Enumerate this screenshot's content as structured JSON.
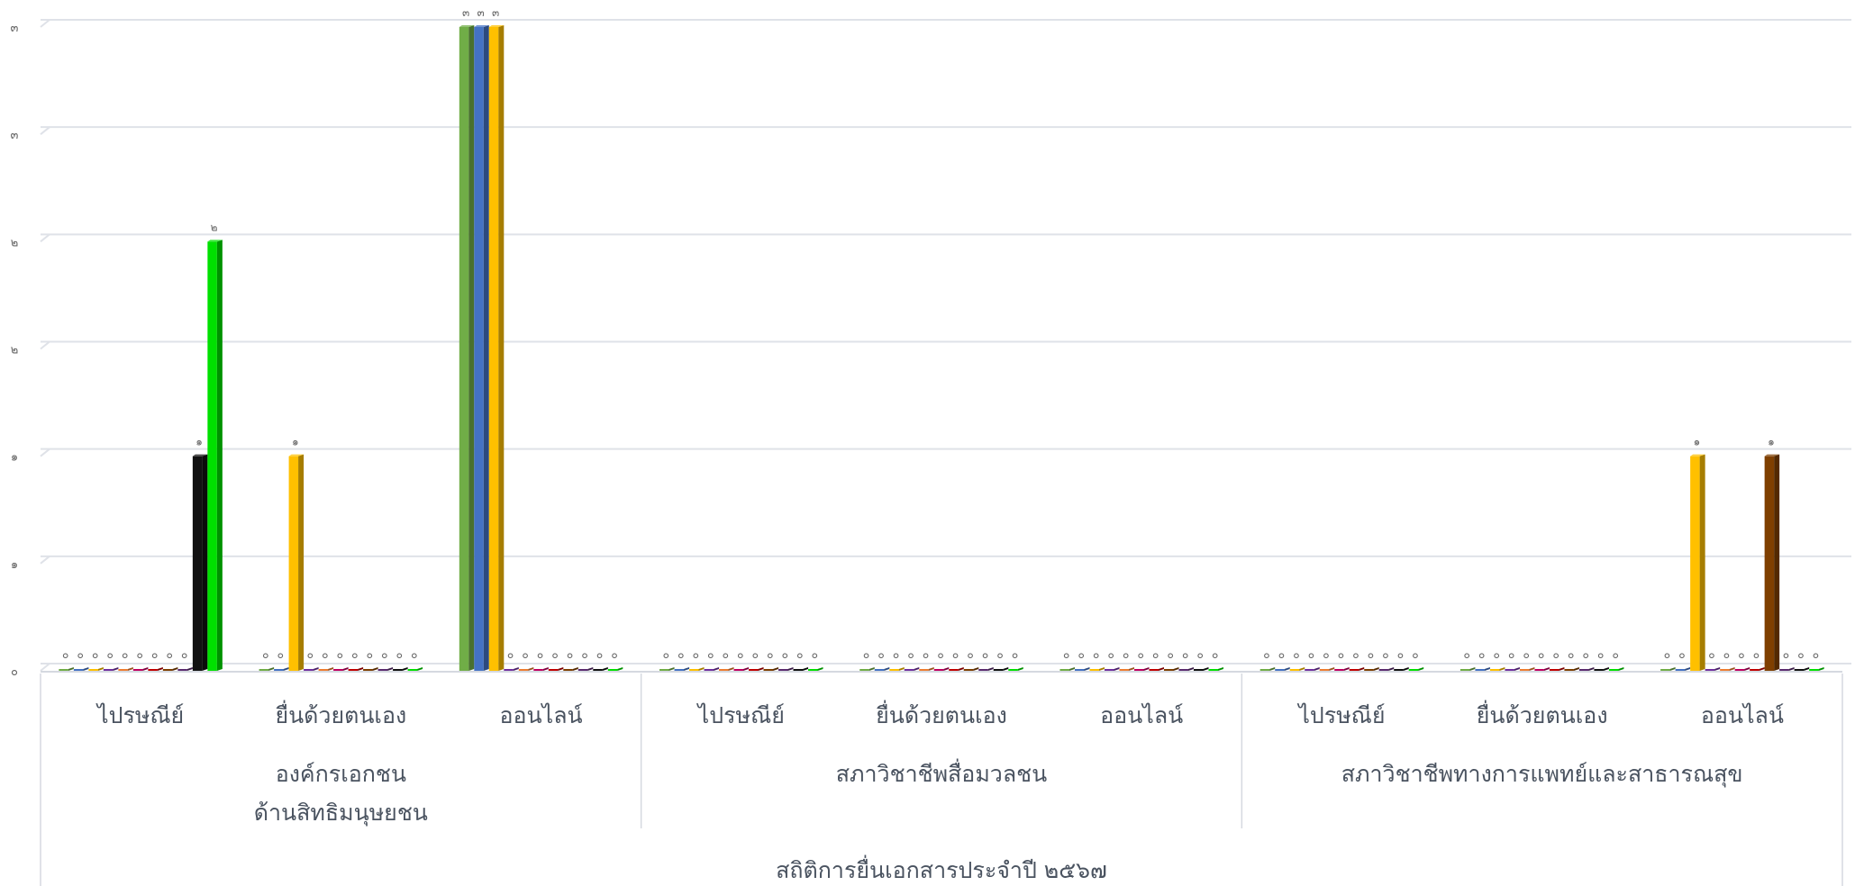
{
  "chart_data": {
    "type": "bar",
    "title": "",
    "xlabel": "สถิติการยื่นเอกสารประจำปี ๒๕๖๗",
    "ylabel": "",
    "ylim": [
      0,
      3
    ],
    "grid": true,
    "legend": "none",
    "y_tick_labels": [
      "๐",
      "๑",
      "๑",
      "๒",
      "๒",
      "๓",
      "๓"
    ],
    "groups": [
      {
        "name": [
          "องค์กรเอกชน",
          "ด้านสิทธิมนุษยชน"
        ],
        "categories": [
          "ไปรษณีย์",
          "ยื่นด้วยตนเอง",
          "ออนไลน์"
        ]
      },
      {
        "name": [
          "สภาวิชาชีพสื่อมวลชน"
        ],
        "categories": [
          "ไปรษณีย์",
          "ยื่นด้วยตนเอง",
          "ออนไลน์"
        ]
      },
      {
        "name": [
          "สภาวิชาชีพทางการแพทย์และสาธารณสุข"
        ],
        "categories": [
          "ไปรษณีย์",
          "ยื่นด้วยตนเอง",
          "ออนไลน์"
        ]
      }
    ],
    "series_colors": [
      "#70ad47",
      "#4472c4",
      "#ffc000",
      "#7030a0",
      "#ed7d31",
      "#c00060",
      "#c00000",
      "#7f3f00",
      "#5b2c6f",
      "#111111",
      "#00e000"
    ],
    "values": [
      [
        0,
        0,
        0,
        0,
        0,
        0,
        0,
        0,
        0,
        1,
        2
      ],
      [
        0,
        0,
        1,
        0,
        0,
        0,
        0,
        0,
        0,
        0,
        0
      ],
      [
        3,
        3,
        3,
        0,
        0,
        0,
        0,
        0,
        0,
        0,
        0
      ],
      [
        0,
        0,
        0,
        0,
        0,
        0,
        0,
        0,
        0,
        0,
        0
      ],
      [
        0,
        0,
        0,
        0,
        0,
        0,
        0,
        0,
        0,
        0,
        0
      ],
      [
        0,
        0,
        0,
        0,
        0,
        0,
        0,
        0,
        0,
        0,
        0
      ],
      [
        0,
        0,
        0,
        0,
        0,
        0,
        0,
        0,
        0,
        0,
        0
      ],
      [
        0,
        0,
        0,
        0,
        0,
        0,
        0,
        0,
        0,
        0,
        0
      ],
      [
        0,
        0,
        1,
        0,
        0,
        0,
        0,
        1,
        0,
        0,
        0
      ]
    ],
    "value_labels": [
      [
        "๐",
        "๐",
        "๐",
        "๐",
        "๐",
        "๐",
        "๐",
        "๐",
        "๐",
        "๑",
        "๒"
      ],
      [
        "๐",
        "๐",
        "๑",
        "๐",
        "๐",
        "๐",
        "๐",
        "๐",
        "๐",
        "๐",
        "๐"
      ],
      [
        "๓",
        "๓",
        "๓",
        "๐",
        "๐",
        "๐",
        "๐",
        "๐",
        "๐",
        "๐",
        "๐"
      ],
      [
        "๐",
        "๐",
        "๐",
        "๐",
        "๐",
        "๐",
        "๐",
        "๐",
        "๐",
        "๐",
        "๐"
      ],
      [
        "๐",
        "๐",
        "๐",
        "๐",
        "๐",
        "๐",
        "๐",
        "๐",
        "๐",
        "๐",
        "๐"
      ],
      [
        "๐",
        "๐",
        "๐",
        "๐",
        "๐",
        "๐",
        "๐",
        "๐",
        "๐",
        "๐",
        "๐"
      ],
      [
        "๐",
        "๐",
        "๐",
        "๐",
        "๐",
        "๐",
        "๐",
        "๐",
        "๐",
        "๐",
        "๐"
      ],
      [
        "๐",
        "๐",
        "๐",
        "๐",
        "๐",
        "๐",
        "๐",
        "๐",
        "๐",
        "๐",
        "๐"
      ],
      [
        "๐",
        "๐",
        "๑",
        "๐",
        "๐",
        "๐",
        "๐",
        "๑",
        "๐",
        "๐",
        "๐"
      ]
    ]
  }
}
